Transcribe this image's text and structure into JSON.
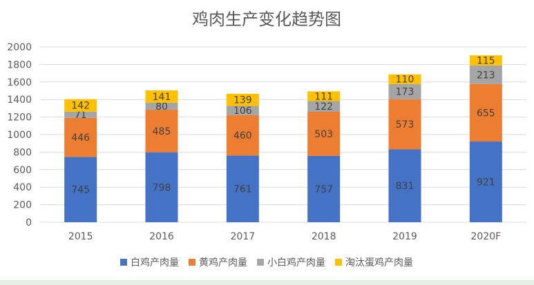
{
  "chart_data": {
    "type": "bar",
    "stacked": true,
    "title": "鸡肉生产变化趋势图",
    "xlabel": "",
    "ylabel": "",
    "categories": [
      "2015",
      "2016",
      "2017",
      "2018",
      "2019",
      "2020F"
    ],
    "ylim": [
      0,
      2000
    ],
    "yticks": [
      0,
      200,
      400,
      600,
      800,
      1000,
      1200,
      1400,
      1600,
      1800,
      2000
    ],
    "grid": true,
    "legend_position": "bottom",
    "series": [
      {
        "name": "白鸡产肉量",
        "color": "#4472c4",
        "values": [
          745,
          798,
          761,
          757,
          831,
          921
        ]
      },
      {
        "name": "黄鸡产肉量",
        "color": "#ed7d31",
        "values": [
          446,
          485,
          460,
          503,
          573,
          655
        ]
      },
      {
        "name": "小白鸡产肉量",
        "color": "#a5a5a5",
        "values": [
          71,
          80,
          106,
          122,
          173,
          213
        ]
      },
      {
        "name": "淘汰蛋鸡产肉量",
        "color": "#ffc000",
        "values": [
          142,
          141,
          139,
          111,
          110,
          115
        ]
      }
    ]
  }
}
